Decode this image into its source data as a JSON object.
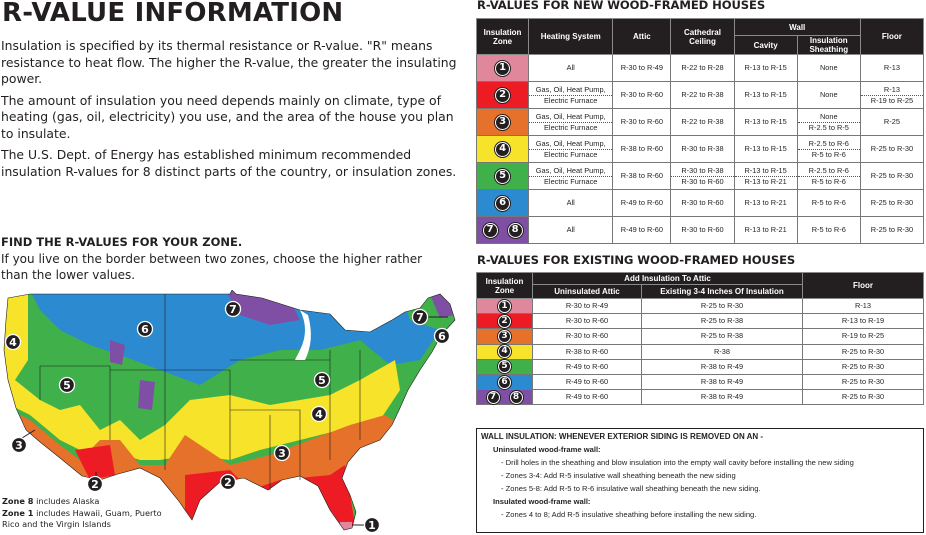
{
  "left": {
    "title": "R-VALUE INFORMATION",
    "intro": [
      "Insulation is specified by its thermal resistance or R-value. \"R\" means resistance to heat flow. The higher the R-value, the greater the insulating power.",
      "The amount of insulation you need depends mainly on climate, type of heating (gas, oil, electricity) you use, and the area of the house you plan to insulate.",
      "The U.S. Dept. of Energy has established minimum recommended insulation R-values for 8 distinct parts of the country, or insulation zones."
    ],
    "find_title": "FIND THE R-VALUES FOR YOUR ZONE.",
    "find_text": "If you live on the border between two zones, choose the higher rather than the lower values.",
    "map_notes": [
      {
        "bold": "Zone 8",
        "text": " includes Alaska"
      },
      {
        "bold": "Zone 1",
        "text": " includes Hawaii, Guam, Puerto Rico and the Virgin Islands"
      }
    ],
    "map_labels": [
      "7",
      "6",
      "7",
      "6",
      "4",
      "5",
      "5",
      "4",
      "3",
      "3",
      "2",
      "2",
      "1"
    ]
  },
  "zone_colors": {
    "1": "#e0879b",
    "2": "#ed1c24",
    "3": "#e5712a",
    "4": "#f6e32a",
    "5": "#40b14a",
    "6": "#2b8ad0",
    "78": "#7f4fa6"
  },
  "new_houses": {
    "title": "R-VALUES FOR NEW WOOD-FRAMED HOUSES",
    "headers": {
      "zone": "Insulation Zone",
      "heating": "Heating System",
      "attic": "Attic",
      "cathedral": "Cathedral Ceiling",
      "wall": "Wall",
      "cavity": "Cavity",
      "sheathing": "Insulation Sheathing",
      "floor": "Floor"
    },
    "rows": [
      {
        "zone": [
          "1"
        ],
        "color": "1",
        "heating": [
          "All"
        ],
        "attic": [
          "R-30 to R-49"
        ],
        "cathedral": [
          "R-22 to R-28"
        ],
        "cavity": [
          "R-13 to R-15"
        ],
        "sheathing": [
          "None"
        ],
        "floor": [
          "R-13"
        ]
      },
      {
        "zone": [
          "2"
        ],
        "color": "2",
        "heating": [
          "Gas, Oil, Heat Pump,",
          "Electric Furnace"
        ],
        "attic": [
          "R-30 to R-60"
        ],
        "cathedral": [
          "R-22 to R-38"
        ],
        "cavity": [
          "R-13 to R-15"
        ],
        "sheathing": [
          "None"
        ],
        "floor": [
          "R-13",
          "R-19 to R-25"
        ]
      },
      {
        "zone": [
          "3"
        ],
        "color": "3",
        "heating": [
          "Gas, Oil, Heat Pump,",
          "Electric Furnace"
        ],
        "attic": [
          "R-30 to R-60"
        ],
        "cathedral": [
          "R-22 to R-38"
        ],
        "cavity": [
          "R-13 to R-15"
        ],
        "sheathing": [
          "None",
          "R-2.5 to R-5"
        ],
        "floor": [
          "R-25"
        ]
      },
      {
        "zone": [
          "4"
        ],
        "color": "4",
        "heating": [
          "Gas, Oil, Heat Pump,",
          "Electric Furnace"
        ],
        "attic": [
          "R-38 to R-60"
        ],
        "cathedral": [
          "R-30 to R-38"
        ],
        "cavity": [
          "R-13 to R-15"
        ],
        "sheathing": [
          "R-2.5 to R-6",
          "R-5 to R-6"
        ],
        "floor": [
          "R-25 to R-30"
        ]
      },
      {
        "zone": [
          "5"
        ],
        "color": "5",
        "heating": [
          "Gas, Oil, Heat Pump,",
          "Electric Furnace"
        ],
        "attic": [
          "R-38 to R-60"
        ],
        "cathedral": [
          "R-30 to R-38",
          "R-30 to R-60"
        ],
        "cavity": [
          "R-13 to R-15",
          "R-13 to R-21"
        ],
        "sheathing": [
          "R-2.5 to R-6",
          "R-5 to R-6"
        ],
        "floor": [
          "R-25 to R-30"
        ]
      },
      {
        "zone": [
          "6"
        ],
        "color": "6",
        "heating": [
          "All"
        ],
        "attic": [
          "R-49 to R-60"
        ],
        "cathedral": [
          "R-30 to R-60"
        ],
        "cavity": [
          "R-13 to R-21"
        ],
        "sheathing": [
          "R-5 to R-6"
        ],
        "floor": [
          "R-25 to R-30"
        ]
      },
      {
        "zone": [
          "7",
          "8"
        ],
        "color": "78",
        "heating": [
          "All"
        ],
        "attic": [
          "R-49 to R-60"
        ],
        "cathedral": [
          "R-30 to R-60"
        ],
        "cavity": [
          "R-13 to R-21"
        ],
        "sheathing": [
          "R-5 to R-6"
        ],
        "floor": [
          "R-25 to R-30"
        ]
      }
    ]
  },
  "existing_houses": {
    "title": "R-VALUES FOR EXISTING WOOD-FRAMED HOUSES",
    "headers": {
      "zone": "Insulation Zone",
      "add_attic": "Add Insulation To Attic",
      "uninsulated": "Uninsulated Attic",
      "existing": "Existing 3-4 Inches Of Insulation",
      "floor": "Floor"
    },
    "rows": [
      {
        "zone": [
          "1"
        ],
        "color": "1",
        "uninsulated": "R-30 to R-49",
        "existing": "R-25 to R-30",
        "floor": "R-13"
      },
      {
        "zone": [
          "2"
        ],
        "color": "2",
        "uninsulated": "R-30 to R-60",
        "existing": "R-25 to R-38",
        "floor": "R-13 to R-19"
      },
      {
        "zone": [
          "3"
        ],
        "color": "3",
        "uninsulated": "R-30 to R-60",
        "existing": "R-25 to R-38",
        "floor": "R-19 to R-25"
      },
      {
        "zone": [
          "4"
        ],
        "color": "4",
        "uninsulated": "R-38 to R-60",
        "existing": "R-38",
        "floor": "R-25 to R-30"
      },
      {
        "zone": [
          "5"
        ],
        "color": "5",
        "uninsulated": "R-49 to R-60",
        "existing": "R-38 to R-49",
        "floor": "R-25 to R-30"
      },
      {
        "zone": [
          "6"
        ],
        "color": "6",
        "uninsulated": "R-49 to R-60",
        "existing": "R-38 to R-49",
        "floor": "R-25 to R-30"
      },
      {
        "zone": [
          "7",
          "8"
        ],
        "color": "78",
        "uninsulated": "R-49 to R-60",
        "existing": "R-38 to R-49",
        "floor": "R-25 to R-30"
      }
    ]
  },
  "wall_insulation": {
    "heading": "WALL INSULATION: WHENEVER EXTERIOR SIDING IS REMOVED ON AN -",
    "uninsulated_label": "Uninsulated wood-frame wall:",
    "uninsulated_items": [
      "- Drill holes in the sheathing and blow insulation into the empty wall cavity before installing the new siding",
      "- Zones 3-4: Add R-5 insulative wall sheathing beneath the new siding",
      "- Zones 5-8: Add R-5 to R-6 insulative wall sheathing beneath the new siding."
    ],
    "insulated_label": "Insulated wood-frame wall:",
    "insulated_items": [
      "- Zones 4 to 8; Add R-5 insulative sheathing before installing the new siding."
    ]
  }
}
